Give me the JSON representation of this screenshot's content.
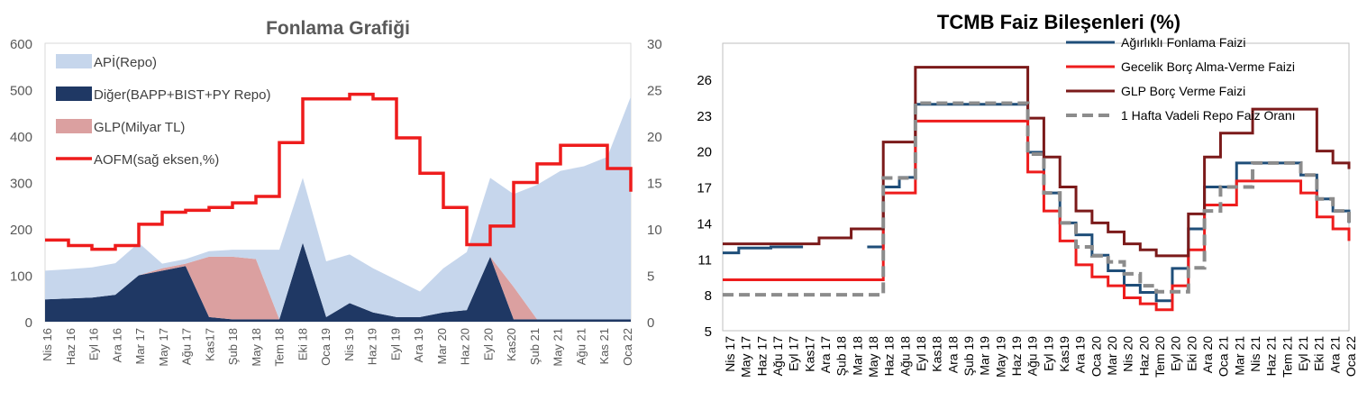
{
  "chart_data": [
    {
      "type": "area",
      "title": "Fonlama Grafiği",
      "xlabel": "",
      "ylabel": "",
      "ylim": [
        0,
        600
      ],
      "y2lim": [
        0,
        30
      ],
      "yticks": [
        0,
        100,
        200,
        300,
        400,
        500,
        600
      ],
      "y2ticks": [
        0,
        5,
        10,
        15,
        20,
        25,
        30
      ],
      "x_ticks": [
        "Nis 16",
        "Haz 16",
        "Eyl 16",
        "Ara 16",
        "Mar 17",
        "May 17",
        "Ağu 17",
        "Kas17",
        "Şub 18",
        "May 18",
        "Tem 18",
        "Eki 18",
        "Oca 19",
        "Nis 19",
        "Haz 19",
        "Eyl 19",
        "Ara 19",
        "Mar 20",
        "Haz 20",
        "Eyl 20",
        "Kas20",
        "Şub 21",
        "May 21",
        "Ağu 21",
        "Kas 21",
        "Oca 22"
      ],
      "x": [
        0,
        1,
        2,
        3,
        4,
        5,
        6,
        7,
        8,
        9,
        10,
        11,
        12,
        13,
        14,
        15,
        16,
        17,
        18,
        19,
        20,
        21,
        22,
        23,
        24,
        25
      ],
      "legend_position": "top-left",
      "grid": false,
      "series": [
        {
          "name": "APİ(Repo)",
          "axis": "left",
          "color": "#c6d6ec",
          "values": [
            62,
            63,
            65,
            68,
            70,
            10,
            10,
            12,
            15,
            20,
            150,
            140,
            120,
            105,
            95,
            80,
            55,
            95,
            125,
            170,
            200,
            290,
            320,
            330,
            350,
            480
          ]
        },
        {
          "name": "Diğer(BAPP+BIST+PY Repo)",
          "axis": "left",
          "color": "#1f3864",
          "values": [
            48,
            50,
            52,
            58,
            100,
            110,
            120,
            10,
            5,
            5,
            5,
            170,
            10,
            40,
            20,
            10,
            10,
            20,
            25,
            140,
            5,
            5,
            5,
            5,
            5,
            5
          ]
        },
        {
          "name": "GLP(Milyar TL)",
          "axis": "left",
          "color": "#dba0a0",
          "values": [
            0,
            0,
            0,
            0,
            0,
            5,
            5,
            130,
            135,
            130,
            0,
            0,
            0,
            0,
            0,
            0,
            0,
            0,
            0,
            0,
            70,
            0,
            0,
            0,
            0,
            0
          ]
        },
        {
          "name": "AOFM(sağ eksen,%)",
          "axis": "right",
          "color": "#ee1c1c",
          "values": [
            8.8,
            8.2,
            7.8,
            8.2,
            10.5,
            11.8,
            12.0,
            12.3,
            12.8,
            13.5,
            19.3,
            24.0,
            24.0,
            24.5,
            24.0,
            19.8,
            16.0,
            12.3,
            8.3,
            10.3,
            15.0,
            17.0,
            19.0,
            19.0,
            16.5,
            14.0
          ]
        }
      ]
    },
    {
      "type": "line",
      "title": "TCMB  Faiz Bileşenleri (%)",
      "xlabel": "",
      "ylabel": "",
      "ylim": [
        5,
        29
      ],
      "yticks": [
        5,
        8,
        11,
        14,
        17,
        20,
        23,
        26
      ],
      "x_ticks": [
        "Nis 17",
        "May 17",
        "Haz 17",
        "Ağu 17",
        "Eyl 17",
        "Kas17",
        "Ara 17",
        "Şub 18",
        "Mar 18",
        "May 18",
        "Haz 18",
        "Ağu 18",
        "Eyl 18",
        "Kas18",
        "Ara 18",
        "Şub 19",
        "Mar 19",
        "May 19",
        "Haz 19",
        "Ağu 19",
        "Eyl 19",
        "Kas19",
        "Ara 19",
        "Oca 20",
        "Mar 20",
        "Nis 20",
        "Haz 20",
        "Tem 20",
        "Eyl 20",
        "Eki 20",
        "Ara 20",
        "Oca 21",
        "Mar 21",
        "Nis 21",
        "Haz 21",
        "Tem 21",
        "Eyl 21",
        "Eki 21",
        "Ara 21",
        "Oca 22"
      ],
      "x": [
        0,
        1,
        2,
        3,
        4,
        5,
        6,
        7,
        8,
        9,
        10,
        11,
        12,
        13,
        14,
        15,
        16,
        17,
        18,
        19,
        20,
        21,
        22,
        23,
        24,
        25,
        26,
        27,
        28,
        29,
        30,
        31,
        32,
        33,
        34,
        35,
        36,
        37,
        38,
        39
      ],
      "legend_position": "top-right",
      "grid": false,
      "series": [
        {
          "name": "Ağırlıklı  Fonlama Faizi",
          "color": "#1f4e79",
          "style": "solid",
          "values": [
            11.5,
            11.9,
            11.9,
            12.0,
            12.0,
            12.0,
            null,
            null,
            null,
            12.0,
            17.0,
            17.8,
            23.9,
            23.9,
            23.9,
            23.9,
            23.9,
            23.9,
            23.9,
            19.9,
            16.5,
            14.0,
            13.0,
            11.3,
            10.0,
            8.8,
            8.2,
            7.5,
            10.2,
            13.5,
            17.0,
            17.0,
            19.0,
            19.0,
            19.0,
            19.0,
            18.0,
            16.0,
            15.0,
            14.0
          ]
        },
        {
          "name": "Gecelik Borç Alma-Verme Faizi",
          "color": "#ee1c1c",
          "style": "solid",
          "values": [
            9.25,
            9.25,
            9.25,
            9.25,
            9.25,
            9.25,
            9.25,
            9.25,
            9.25,
            9.25,
            16.5,
            16.5,
            22.5,
            22.5,
            22.5,
            22.5,
            22.5,
            22.5,
            22.5,
            18.25,
            15.0,
            12.5,
            10.5,
            9.5,
            8.75,
            7.75,
            7.25,
            6.75,
            8.75,
            11.75,
            15.5,
            15.5,
            17.5,
            17.5,
            17.5,
            17.5,
            16.5,
            14.5,
            13.5,
            12.5
          ]
        },
        {
          "name": "GLP Borç Verme Faizi",
          "color": "#7b1a1a",
          "style": "solid",
          "values": [
            12.25,
            12.25,
            12.25,
            12.25,
            12.25,
            12.25,
            12.75,
            12.75,
            13.5,
            13.5,
            20.75,
            20.75,
            27.0,
            27.0,
            27.0,
            27.0,
            27.0,
            27.0,
            27.0,
            22.75,
            19.5,
            17.0,
            15.0,
            14.0,
            13.25,
            12.25,
            11.75,
            11.25,
            11.25,
            14.75,
            19.5,
            21.5,
            21.5,
            23.5,
            23.5,
            23.5,
            23.5,
            20.0,
            19.0,
            18.5
          ]
        },
        {
          "name": "1 Hafta Vadeli Repo Faiz Oranı",
          "color": "#8c8c8c",
          "style": "dashed",
          "values": [
            8.0,
            8.0,
            8.0,
            8.0,
            8.0,
            8.0,
            8.0,
            8.0,
            8.0,
            8.0,
            17.75,
            17.75,
            24.0,
            24.0,
            24.0,
            24.0,
            24.0,
            24.0,
            24.0,
            19.75,
            16.5,
            14.0,
            12.0,
            11.25,
            10.75,
            9.75,
            8.75,
            8.25,
            8.25,
            10.25,
            15.0,
            17.0,
            17.0,
            19.0,
            19.0,
            19.0,
            18.0,
            16.0,
            15.0,
            14.0
          ]
        }
      ]
    }
  ]
}
